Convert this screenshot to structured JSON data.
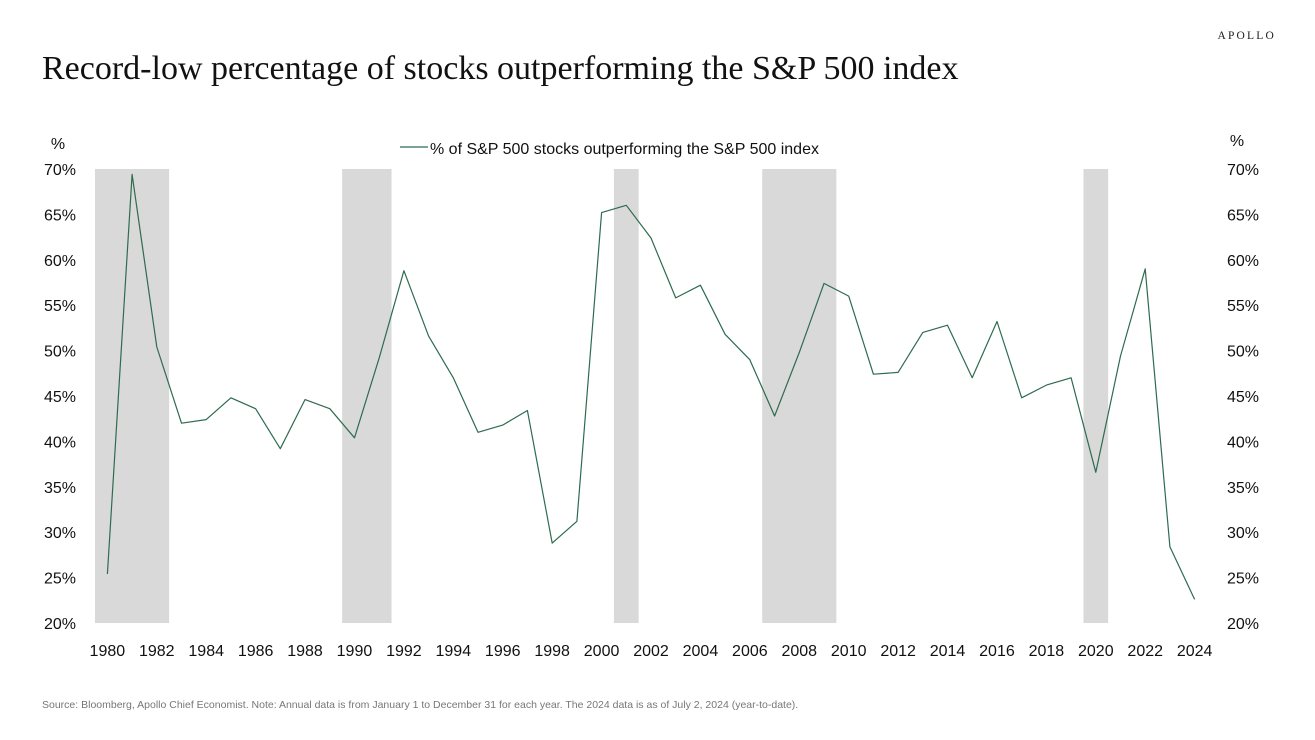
{
  "header": {
    "brand": "APOLLO",
    "title": "Record-low percentage of stocks outperforming the S&P 500 index"
  },
  "footer": {
    "source": "Source: Bloomberg, Apollo Chief Economist. Note: Annual data is from January 1 to December 31 for each year. The 2024 data is as of July 2, 2024 (year-to-date)."
  },
  "colors": {
    "line": "#2e6b4f",
    "recession": "#d9d9d9",
    "text": "#111111"
  },
  "chart_data": {
    "type": "line",
    "title": "Record-low percentage of stocks outperforming the S&P 500 index",
    "ylabel_left": "%",
    "ylabel_right": "%",
    "xlabel": "",
    "legend": "% of S&P 500 stocks outperforming the S&P 500 index",
    "legend_position": "top-center",
    "grid": false,
    "ylim": [
      20,
      70
    ],
    "y_ticks": [
      20,
      25,
      30,
      35,
      40,
      45,
      50,
      55,
      60,
      65,
      70
    ],
    "y_tick_labels": [
      "20%",
      "25%",
      "30%",
      "35%",
      "40%",
      "45%",
      "50%",
      "55%",
      "60%",
      "65%",
      "70%"
    ],
    "x_ticks": [
      1980,
      1982,
      1984,
      1986,
      1988,
      1990,
      1992,
      1994,
      1996,
      1998,
      2000,
      2002,
      2004,
      2006,
      2008,
      2010,
      2012,
      2014,
      2016,
      2018,
      2020,
      2022,
      2024
    ],
    "x_tick_labels": [
      "1980",
      "1982",
      "1984",
      "1986",
      "1988",
      "1990",
      "1992",
      "1994",
      "1996",
      "1998",
      "2000",
      "2002",
      "2004",
      "2006",
      "2008",
      "2010",
      "2012",
      "2014",
      "2016",
      "2018",
      "2020",
      "2022",
      "2024"
    ],
    "recession_shading": [
      {
        "start": 1979.5,
        "end": 1982.5
      },
      {
        "start": 1989.5,
        "end": 1991.5
      },
      {
        "start": 2000.5,
        "end": 2001.5
      },
      {
        "start": 2006.5,
        "end": 2009.5
      },
      {
        "start": 2019.5,
        "end": 2020.5
      }
    ],
    "series": [
      {
        "name": "% of S&P 500 stocks outperforming the S&P 500 index",
        "x": [
          1980,
          1981,
          1982,
          1983,
          1984,
          1985,
          1986,
          1987,
          1988,
          1989,
          1990,
          1991,
          1992,
          1993,
          1994,
          1995,
          1996,
          1997,
          1998,
          1999,
          2000,
          2001,
          2002,
          2003,
          2004,
          2005,
          2006,
          2007,
          2008,
          2009,
          2010,
          2011,
          2012,
          2013,
          2014,
          2015,
          2016,
          2017,
          2018,
          2019,
          2020,
          2021,
          2022,
          2023,
          2024
        ],
        "values": [
          25.4,
          69.4,
          50.4,
          42.0,
          42.4,
          44.8,
          43.6,
          39.2,
          44.6,
          43.6,
          40.4,
          49.2,
          58.8,
          51.6,
          47.0,
          41.0,
          41.8,
          43.4,
          28.8,
          31.2,
          65.2,
          66.0,
          62.4,
          55.8,
          57.2,
          51.8,
          49.0,
          42.8,
          49.8,
          57.4,
          56.0,
          47.4,
          47.6,
          52.0,
          52.8,
          47.0,
          53.2,
          44.8,
          46.2,
          47.0,
          36.6,
          49.4,
          59.0,
          28.4,
          22.6
        ]
      }
    ]
  }
}
